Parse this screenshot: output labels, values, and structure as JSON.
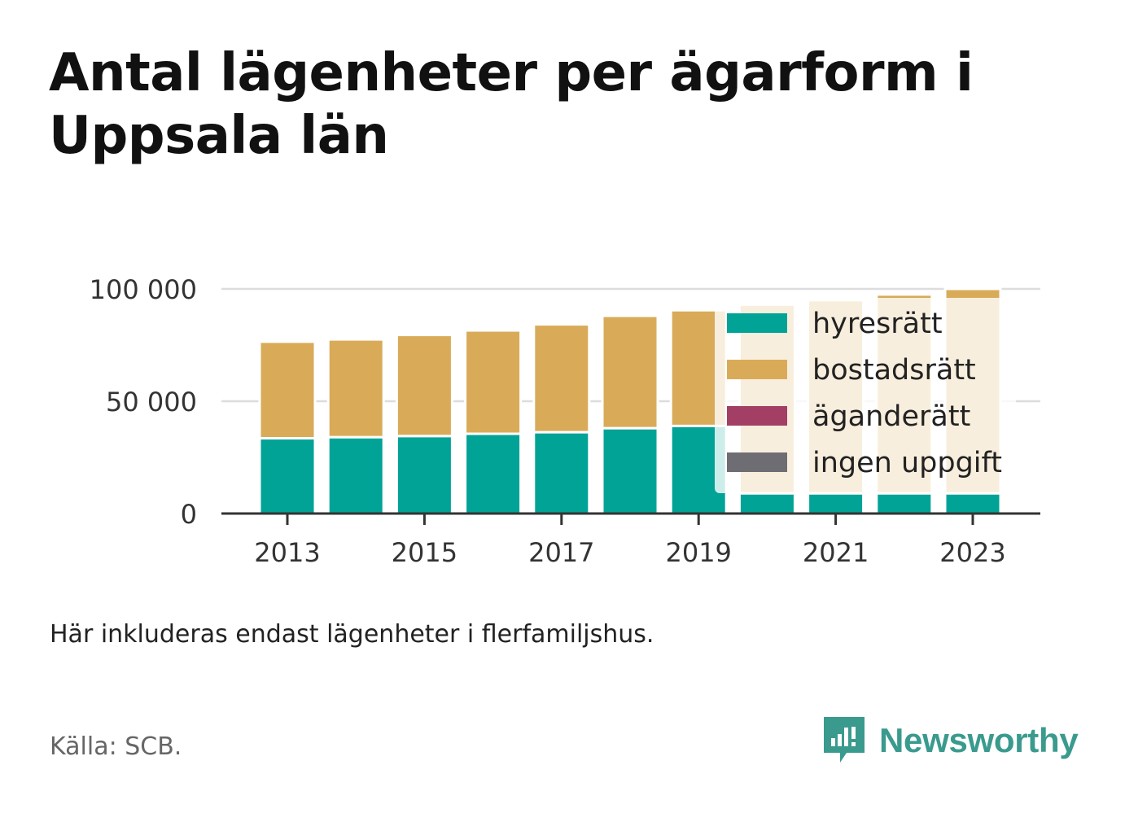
{
  "title": "Antal lägenheter per ägarform i Uppsala län",
  "note": "Här inkluderas endast lägenheter i flerfamiljshus.",
  "source": "Källa: SCB.",
  "brand": {
    "name": "Newsworthy",
    "icon": "newsworthy-logo-icon",
    "color": "#3a9a8e"
  },
  "chart_data": {
    "type": "bar",
    "stacked": true,
    "x": [
      2013,
      2014,
      2015,
      2016,
      2017,
      2018,
      2019,
      2020,
      2021,
      2022,
      2023
    ],
    "x_tick_labels": [
      "2013",
      "2015",
      "2017",
      "2019",
      "2021",
      "2023"
    ],
    "y_ticks": [
      0,
      50000,
      100000
    ],
    "y_tick_labels": [
      "0",
      "50 000",
      "100 000"
    ],
    "ylim": [
      0,
      100000
    ],
    "grid": true,
    "legend_position": "right, over the plot",
    "series": [
      {
        "name": "hyresrätt",
        "color": "#00a396",
        "values": [
          33500,
          34000,
          34500,
          35500,
          36200,
          38000,
          39000,
          9000,
          9000,
          9000,
          9000
        ]
      },
      {
        "name": "bostadsrätt",
        "color": "#d9ab58",
        "values": [
          43000,
          43500,
          45000,
          46000,
          48000,
          50000,
          51500,
          84000,
          86000,
          88500,
          91000
        ]
      },
      {
        "name": "äganderätt",
        "color": "#a33e65",
        "values": [
          0,
          0,
          0,
          0,
          0,
          0,
          0,
          0,
          0,
          0,
          0
        ]
      },
      {
        "name": "ingen uppgift",
        "color": "#6e6d73",
        "values": [
          0,
          0,
          0,
          0,
          0,
          0,
          0,
          0,
          0,
          0,
          0
        ]
      }
    ]
  }
}
